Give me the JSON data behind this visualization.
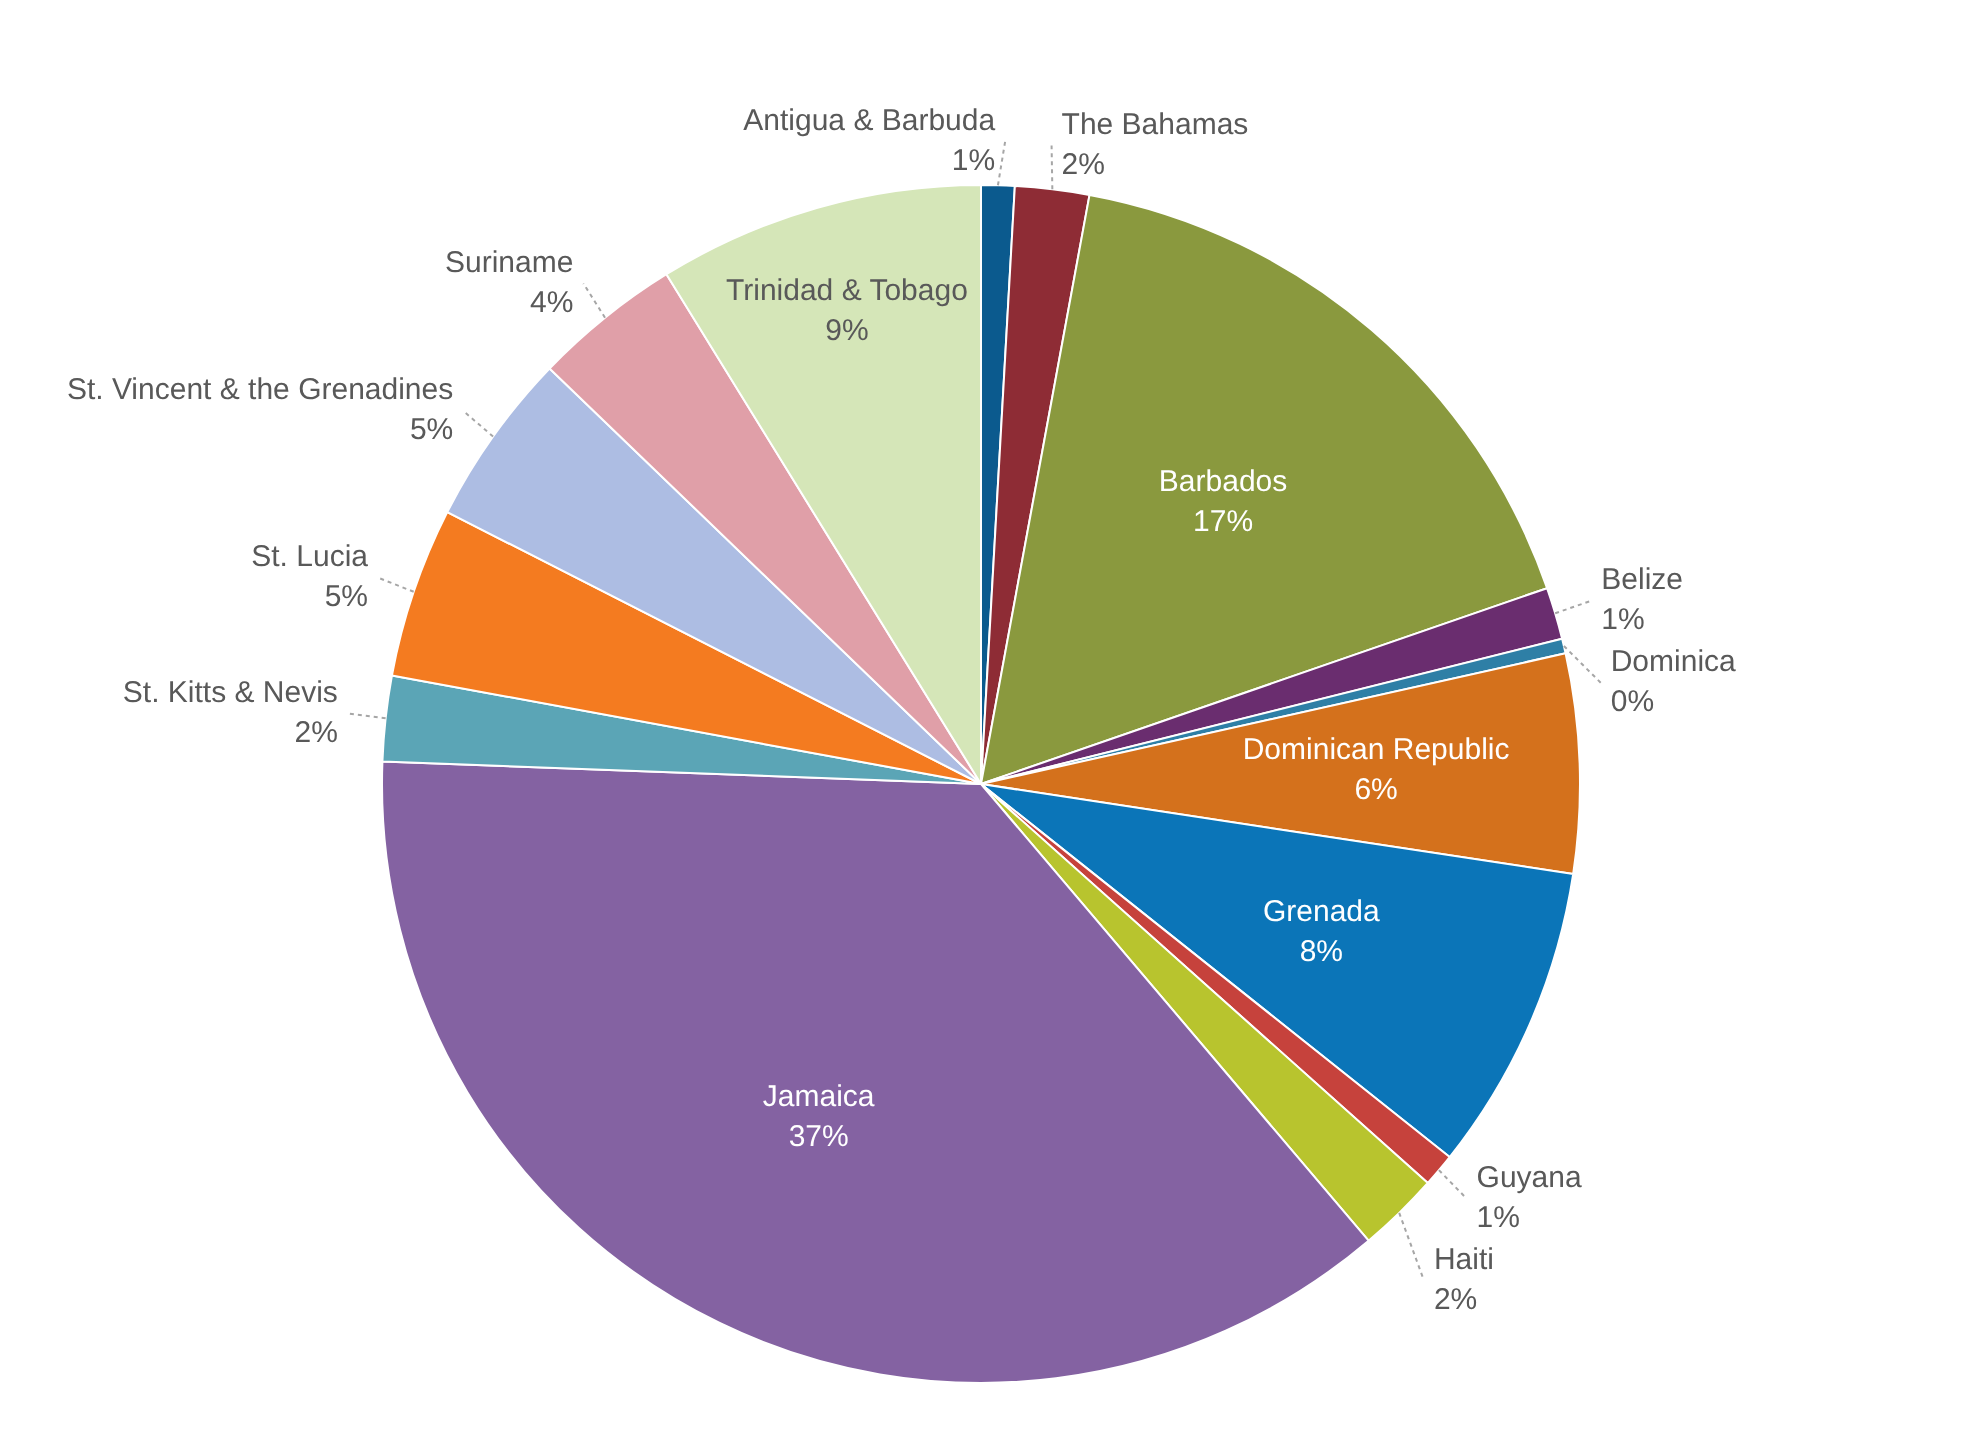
{
  "chart_data": {
    "type": "pie",
    "categories": [
      "Antigua & Barbuda",
      "The Bahamas",
      "Barbados",
      "Belize",
      "Dominica",
      "Dominican Republic",
      "Grenada",
      "Guyana",
      "Haiti",
      "Jamaica",
      "St. Kitts & Nevis",
      "St. Lucia",
      "St. Vincent & the Grenadines",
      "Suriname",
      "Trinidad & Tobago"
    ],
    "values": [
      0.9,
      2.0,
      16.8,
      1.4,
      0.4,
      5.9,
      8.3,
      0.9,
      2.2,
      36.8,
      2.3,
      4.6,
      4.7,
      4.0,
      8.8
    ],
    "value_labels": [
      "1%",
      "2%",
      "17%",
      "1%",
      "0%",
      "6%",
      "8%",
      "1%",
      "2%",
      "37%",
      "2%",
      "5%",
      "5%",
      "4%",
      "9%"
    ],
    "colors": [
      "#0b5a8e",
      "#8e2c35",
      "#8a993e",
      "#6a2d6f",
      "#2e7fa6",
      "#d4711c",
      "#0b75b8",
      "#c6423c",
      "#b8c42e",
      "#8462a2",
      "#5ba5b6",
      "#f47b20",
      "#adbde3",
      "#e09fa8",
      "#d5e6b8"
    ]
  }
}
